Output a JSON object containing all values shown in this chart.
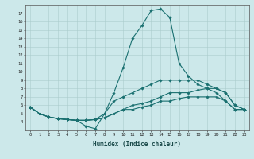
{
  "xlabel": "Humidex (Indice chaleur)",
  "bg_color": "#cce8ea",
  "grid_color": "#aacccc",
  "line_color": "#1a7070",
  "xlim": [
    -0.5,
    23.5
  ],
  "ylim": [
    3,
    18
  ],
  "xticks": [
    0,
    1,
    2,
    3,
    4,
    5,
    6,
    7,
    8,
    9,
    10,
    11,
    12,
    13,
    14,
    15,
    16,
    17,
    18,
    19,
    20,
    21,
    22,
    23
  ],
  "yticks": [
    4,
    5,
    6,
    7,
    8,
    9,
    10,
    11,
    12,
    13,
    14,
    15,
    16,
    17
  ],
  "series": [
    [
      5.8,
      5.0,
      4.6,
      4.4,
      4.3,
      4.2,
      3.5,
      3.2,
      5.0,
      7.5,
      10.5,
      14.0,
      15.5,
      17.3,
      17.5,
      16.5,
      11.0,
      9.5,
      8.5,
      8.0,
      7.5,
      6.5,
      5.5,
      5.5
    ],
    [
      5.8,
      5.0,
      4.6,
      4.4,
      4.3,
      4.2,
      4.2,
      4.3,
      5.0,
      6.5,
      7.0,
      7.5,
      8.0,
      8.5,
      9.0,
      9.0,
      9.0,
      9.0,
      9.0,
      8.5,
      8.0,
      7.5,
      6.0,
      5.5
    ],
    [
      5.8,
      5.0,
      4.6,
      4.4,
      4.3,
      4.2,
      4.2,
      4.3,
      4.5,
      5.0,
      5.5,
      6.0,
      6.2,
      6.5,
      7.0,
      7.5,
      7.5,
      7.5,
      7.8,
      8.0,
      8.0,
      7.5,
      6.0,
      5.5
    ],
    [
      5.8,
      5.0,
      4.6,
      4.4,
      4.3,
      4.2,
      4.2,
      4.3,
      4.5,
      5.0,
      5.5,
      5.5,
      5.8,
      6.0,
      6.5,
      6.5,
      6.8,
      7.0,
      7.0,
      7.0,
      7.0,
      6.5,
      5.5,
      5.5
    ]
  ]
}
